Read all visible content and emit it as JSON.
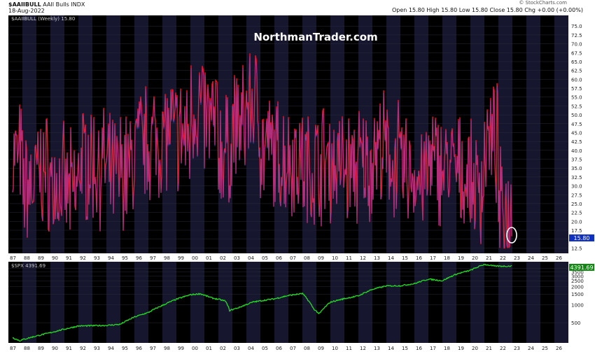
{
  "header": {
    "symbol": "$AAIIBULL",
    "name": "AAII Bulls INDX",
    "date": "18-Aug-2022",
    "source": "© StockCharts.com",
    "quote": "Open 15.80  High 15.80  Low 15.80  Close 15.80  Chg +0.00 (+0.00%)",
    "legend_main": "$AAIIBULL (Weekly) 15.80",
    "legend_sub": "$SPX 4391.69",
    "watermark": "NorthmanTrader.com"
  },
  "colors": {
    "panel_bg": "#000000",
    "band": "#16162f",
    "bull_line": "#ff0a20",
    "bull_inner": "#4466ff",
    "spx_line": "#22dd22",
    "last_tag_bg": "#1030c0",
    "spx_tag_bg": "#118811"
  },
  "chart_data": [
    {
      "type": "line",
      "series": [
        {
          "name": "$AAIIBULL (Weekly)",
          "last": 15.8
        }
      ],
      "x_ticks": [
        "87",
        "88",
        "89",
        "90",
        "91",
        "92",
        "93",
        "94",
        "95",
        "96",
        "97",
        "98",
        "99",
        "00",
        "01",
        "02",
        "03",
        "04",
        "05",
        "06",
        "07",
        "08",
        "09",
        "10",
        "11",
        "12",
        "13",
        "14",
        "15",
        "16",
        "17",
        "18",
        "19",
        "20",
        "21",
        "22",
        "23",
        "24",
        "25",
        "26"
      ],
      "y_ticks": [
        "12.5",
        "15.0",
        "17.5",
        "20.0",
        "22.5",
        "25.0",
        "27.5",
        "30.0",
        "32.5",
        "35.0",
        "37.5",
        "40.0",
        "42.5",
        "45.0",
        "47.5",
        "50.0",
        "52.5",
        "55.0",
        "57.5",
        "60.0",
        "62.5",
        "65.0",
        "67.5",
        "70.0",
        "72.5",
        "75.0"
      ],
      "ylim": [
        11,
        78
      ],
      "last_value": "15.80",
      "annotation": "circle around latest low value"
    },
    {
      "type": "line",
      "series": [
        {
          "name": "$SPX",
          "last": 4391.69
        }
      ],
      "y_ticks": [
        "4000",
        "3500",
        "3000",
        "2500",
        "2000",
        "1500",
        "1000",
        "500"
      ],
      "last_value": "4391.69",
      "scale": "log"
    }
  ]
}
